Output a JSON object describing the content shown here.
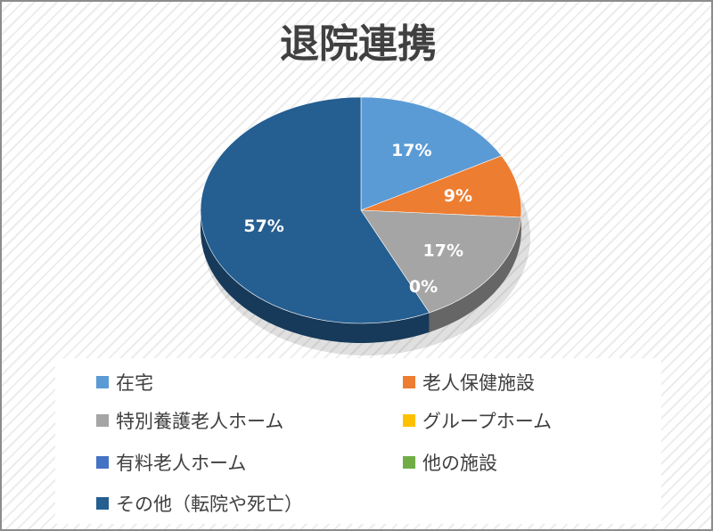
{
  "title": "退院連携",
  "colors": {
    "c1": "#5b9bd5",
    "c2": "#ed7d31",
    "c3": "#a5a5a5",
    "c4": "#ffc000",
    "c5": "#4472c4",
    "c6": "#70ad47",
    "c7": "#255e91"
  },
  "chart_data": {
    "type": "pie",
    "title": "退院連携",
    "slices": [
      {
        "label": "在宅",
        "value": 17,
        "display": "17%",
        "color": "#5b9bd5"
      },
      {
        "label": "老人保健施設",
        "value": 9,
        "display": "9%",
        "color": "#ed7d31"
      },
      {
        "label": "特別養護老人ホーム",
        "value": 17,
        "display": "17%",
        "color": "#a5a5a5"
      },
      {
        "label": "グループホーム",
        "value": 0,
        "display": "0%",
        "color": "#ffc000"
      },
      {
        "label": "有料老人ホーム",
        "value": 0,
        "display": "0%",
        "color": "#4472c4"
      },
      {
        "label": "他の施設",
        "value": 0,
        "display": "0%",
        "color": "#70ad47"
      },
      {
        "label": "その他（転院や死亡）",
        "value": 57,
        "display": "57%",
        "color": "#255e91"
      }
    ],
    "legend_position": "bottom"
  },
  "legend": [
    {
      "label": "在宅",
      "color": "#5b9bd5"
    },
    {
      "label": "老人保健施設",
      "color": "#ed7d31"
    },
    {
      "label": "特別養護老人ホーム",
      "color": "#a5a5a5"
    },
    {
      "label": "グループホーム",
      "color": "#ffc000"
    },
    {
      "label": "有料老人ホーム",
      "color": "#4472c4"
    },
    {
      "label": "他の施設",
      "color": "#70ad47"
    },
    {
      "label": "その他（転院や死亡）",
      "color": "#255e91"
    }
  ]
}
